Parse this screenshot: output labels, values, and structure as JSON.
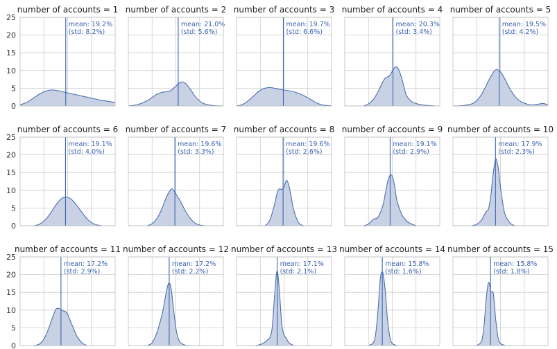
{
  "colors": {
    "fill": "#c9d2e4",
    "line": "#4a6fad",
    "mean_line": "#3a63b0",
    "annotation": "#3a63b0",
    "grid": "#cccccc"
  },
  "chart_data": {
    "type": "area",
    "description": "density",
    "layout": {
      "rows": 3,
      "cols": 5
    },
    "ylim": [
      0,
      25
    ],
    "yticks": [
      0,
      5,
      10,
      15,
      20,
      25
    ],
    "xlim": [
      0,
      0.4
    ],
    "grid": true,
    "panels": [
      {
        "title": "number of accounts = 1",
        "mean_label": "mean: 19.2%",
        "std_label": "(std: 8.2%)",
        "mean": 0.192,
        "std": 0.082,
        "x": [
          0.0,
          0.02,
          0.04,
          0.06,
          0.08,
          0.1,
          0.12,
          0.14,
          0.16,
          0.18,
          0.2,
          0.22,
          0.24,
          0.26,
          0.28,
          0.3,
          0.32,
          0.34,
          0.36,
          0.38,
          0.4
        ],
        "y": [
          0.3,
          0.8,
          1.5,
          2.4,
          3.3,
          4.0,
          4.4,
          4.5,
          4.3,
          4.0,
          3.7,
          3.4,
          3.1,
          2.8,
          2.5,
          2.2,
          1.9,
          1.6,
          1.4,
          1.2,
          1.0
        ]
      },
      {
        "title": "number of accounts = 2",
        "mean_label": "mean: 21.0%",
        "std_label": "(std: 5.6%)",
        "mean": 0.21,
        "std": 0.056,
        "x": [
          0.0,
          0.04,
          0.08,
          0.1,
          0.12,
          0.14,
          0.16,
          0.18,
          0.2,
          0.22,
          0.24,
          0.26,
          0.28,
          0.3,
          0.32,
          0.36,
          0.4
        ],
        "y": [
          0.0,
          0.4,
          1.5,
          2.4,
          3.3,
          3.8,
          4.0,
          4.4,
          5.6,
          6.7,
          6.4,
          4.8,
          2.8,
          1.4,
          0.6,
          0.1,
          0.0
        ]
      },
      {
        "title": "number of accounts = 3",
        "mean_label": "mean: 19.7%",
        "std_label": "(std: 6.6%)",
        "mean": 0.197,
        "std": 0.066,
        "x": [
          0.0,
          0.02,
          0.04,
          0.06,
          0.08,
          0.1,
          0.12,
          0.14,
          0.16,
          0.18,
          0.2,
          0.22,
          0.24,
          0.26,
          0.28,
          0.3,
          0.32,
          0.34,
          0.36,
          0.4
        ],
        "y": [
          0.0,
          0.3,
          1.0,
          2.1,
          3.3,
          4.4,
          5.0,
          5.2,
          5.0,
          4.7,
          4.5,
          4.3,
          4.0,
          3.6,
          3.0,
          2.3,
          1.5,
          0.8,
          0.3,
          0.0
        ]
      },
      {
        "title": "number of accounts = 4",
        "mean_label": "mean: 20.3%",
        "std_label": "(std: 3.4%)",
        "mean": 0.203,
        "std": 0.034,
        "x": [
          0.08,
          0.1,
          0.12,
          0.14,
          0.16,
          0.17,
          0.18,
          0.19,
          0.2,
          0.21,
          0.22,
          0.23,
          0.24,
          0.25,
          0.26,
          0.28,
          0.3,
          0.32,
          0.34,
          0.36,
          0.38
        ],
        "y": [
          0.0,
          0.6,
          1.8,
          4.0,
          6.8,
          7.8,
          8.2,
          8.6,
          9.8,
          10.8,
          11.0,
          9.8,
          7.8,
          5.2,
          3.0,
          1.3,
          0.7,
          0.4,
          0.2,
          0.1,
          0.0
        ]
      },
      {
        "title": "number of accounts = 5",
        "mean_label": "mean: 19.5%",
        "std_label": "(std: 4.2%)",
        "mean": 0.195,
        "std": 0.042,
        "x": [
          0.0,
          0.04,
          0.08,
          0.1,
          0.12,
          0.14,
          0.16,
          0.18,
          0.2,
          0.22,
          0.24,
          0.26,
          0.28,
          0.3,
          0.32,
          0.34,
          0.36,
          0.38,
          0.4
        ],
        "y": [
          0.0,
          0.1,
          0.6,
          1.5,
          3.2,
          5.8,
          8.4,
          10.2,
          9.6,
          7.4,
          4.8,
          2.8,
          1.5,
          0.8,
          0.4,
          0.3,
          0.5,
          0.7,
          0.3
        ]
      },
      {
        "title": "number of accounts = 6",
        "mean_label": "mean: 19.1%",
        "std_label": "(std: 4.0%)",
        "mean": 0.191,
        "std": 0.04,
        "x": [
          0.06,
          0.08,
          0.1,
          0.12,
          0.14,
          0.16,
          0.18,
          0.2,
          0.22,
          0.24,
          0.26,
          0.28,
          0.3,
          0.32,
          0.34
        ],
        "y": [
          0.0,
          0.4,
          1.3,
          2.8,
          4.8,
          6.7,
          7.9,
          8.0,
          7.2,
          5.6,
          3.8,
          2.1,
          0.9,
          0.3,
          0.0
        ]
      },
      {
        "title": "number of accounts = 7",
        "mean_label": "mean: 19.6%",
        "std_label": "(std: 3.3%)",
        "mean": 0.196,
        "std": 0.033,
        "x": [
          0.08,
          0.1,
          0.12,
          0.14,
          0.16,
          0.18,
          0.19,
          0.2,
          0.22,
          0.24,
          0.26,
          0.28,
          0.3,
          0.32
        ],
        "y": [
          0.0,
          0.6,
          2.0,
          4.6,
          8.0,
          10.3,
          10.0,
          9.0,
          6.8,
          4.2,
          2.1,
          0.8,
          0.2,
          0.0
        ]
      },
      {
        "title": "number of accounts = 8",
        "mean_label": "mean: 19.6%",
        "std_label": "(std: 2.6%)",
        "mean": 0.196,
        "std": 0.026,
        "x": [
          0.12,
          0.14,
          0.16,
          0.17,
          0.18,
          0.19,
          0.2,
          0.21,
          0.22,
          0.23,
          0.24,
          0.26,
          0.28
        ],
        "y": [
          0.0,
          1.5,
          6.0,
          9.0,
          10.4,
          10.2,
          11.0,
          12.8,
          11.4,
          8.2,
          4.6,
          1.0,
          0.0
        ]
      },
      {
        "title": "number of accounts = 9",
        "mean_label": "mean: 19.1%",
        "std_label": "(std: 2.9%)",
        "mean": 0.191,
        "std": 0.029,
        "x": [
          0.08,
          0.1,
          0.12,
          0.14,
          0.16,
          0.17,
          0.18,
          0.19,
          0.2,
          0.21,
          0.22,
          0.24,
          0.26,
          0.28,
          0.3
        ],
        "y": [
          0.0,
          0.5,
          1.8,
          2.4,
          5.6,
          8.8,
          12.2,
          14.2,
          14.0,
          11.2,
          7.0,
          3.2,
          1.4,
          0.5,
          0.0
        ]
      },
      {
        "title": "number of accounts = 10",
        "mean_label": "mean: 17.9%",
        "std_label": "(std: 2.3%)",
        "mean": 0.179,
        "std": 0.023,
        "x": [
          0.08,
          0.1,
          0.12,
          0.13,
          0.14,
          0.15,
          0.16,
          0.17,
          0.18,
          0.19,
          0.2,
          0.21,
          0.22,
          0.24,
          0.26
        ],
        "y": [
          0.0,
          0.4,
          1.6,
          2.8,
          4.0,
          4.8,
          8.8,
          15.0,
          18.8,
          16.6,
          11.0,
          6.2,
          3.0,
          0.8,
          0.0
        ]
      },
      {
        "title": "number of accounts = 11",
        "mean_label": "mean: 17.2%",
        "std_label": "(std: 2.9%)",
        "mean": 0.172,
        "std": 0.029,
        "x": [
          0.06,
          0.08,
          0.1,
          0.12,
          0.14,
          0.15,
          0.16,
          0.17,
          0.18,
          0.19,
          0.2,
          0.22,
          0.24,
          0.26,
          0.28
        ],
        "y": [
          0.0,
          0.4,
          1.8,
          4.8,
          8.6,
          10.2,
          10.5,
          10.2,
          9.8,
          9.6,
          8.8,
          5.6,
          2.5,
          0.8,
          0.0
        ]
      },
      {
        "title": "number of accounts = 12",
        "mean_label": "mean: 17.2%",
        "std_label": "(std: 2.2%)",
        "mean": 0.172,
        "std": 0.022,
        "x": [
          0.08,
          0.1,
          0.12,
          0.14,
          0.15,
          0.16,
          0.17,
          0.18,
          0.19,
          0.2,
          0.21,
          0.22,
          0.24,
          0.26
        ],
        "y": [
          0.0,
          0.8,
          3.6,
          8.2,
          11.4,
          15.2,
          17.6,
          16.2,
          10.4,
          5.0,
          2.0,
          0.8,
          0.1,
          0.0
        ]
      },
      {
        "title": "number of accounts = 13",
        "mean_label": "mean: 17.1%",
        "std_label": "(std: 2.1%)",
        "mean": 0.171,
        "std": 0.021,
        "x": [
          0.08,
          0.1,
          0.12,
          0.13,
          0.14,
          0.15,
          0.16,
          0.17,
          0.18,
          0.19,
          0.2,
          0.21,
          0.22,
          0.24
        ],
        "y": [
          0.0,
          0.3,
          1.0,
          1.6,
          2.2,
          5.0,
          14.0,
          21.0,
          16.0,
          6.2,
          3.0,
          2.0,
          0.8,
          0.0
        ]
      },
      {
        "title": "number of accounts = 14",
        "mean_label": "mean: 15.8%",
        "std_label": "(std: 1.6%)",
        "mean": 0.158,
        "std": 0.016,
        "x": [
          0.1,
          0.12,
          0.13,
          0.14,
          0.15,
          0.16,
          0.17,
          0.18,
          0.19,
          0.2,
          0.22
        ],
        "y": [
          0.0,
          0.8,
          3.2,
          10.0,
          19.0,
          20.6,
          15.8,
          7.4,
          2.4,
          0.6,
          0.0
        ]
      },
      {
        "title": "number of accounts = 15",
        "mean_label": "mean: 15.8%",
        "std_label": "(std: 1.8%)",
        "mean": 0.158,
        "std": 0.018,
        "x": [
          0.1,
          0.12,
          0.13,
          0.14,
          0.15,
          0.16,
          0.17,
          0.18,
          0.19,
          0.2,
          0.22
        ],
        "y": [
          0.0,
          1.2,
          5.0,
          13.2,
          17.8,
          15.2,
          14.6,
          7.4,
          2.2,
          0.6,
          0.0
        ]
      }
    ]
  }
}
